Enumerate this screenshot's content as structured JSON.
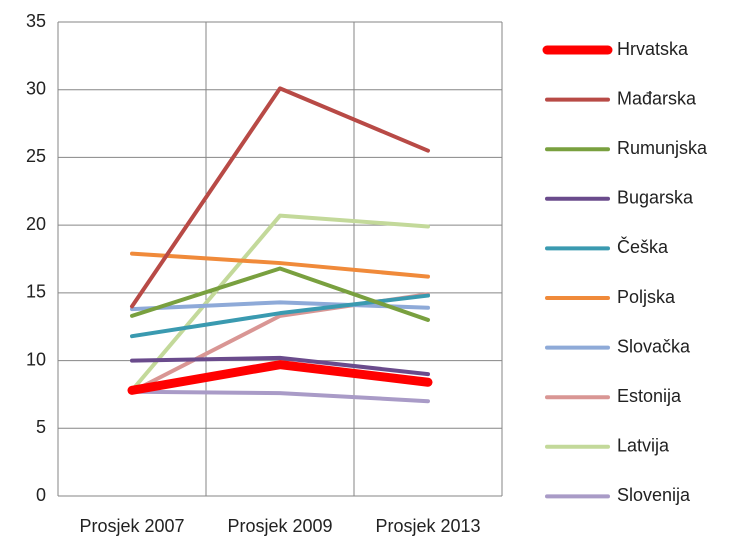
{
  "chart_data": {
    "type": "line",
    "categories": [
      "Prosjek 2007",
      "Prosjek 2009",
      "Prosjek 2013"
    ],
    "ylim": [
      0,
      35
    ],
    "yticks": [
      0,
      5,
      10,
      15,
      20,
      25,
      30,
      35
    ],
    "grid": true,
    "legend": "right",
    "series": [
      {
        "name": "Hrvatska",
        "color": "#ff0000",
        "line_width": 9,
        "values": [
          7.8,
          9.7,
          8.4
        ]
      },
      {
        "name": "Mađarska",
        "color": "#b84a46",
        "line_width": 4,
        "values": [
          14.0,
          30.1,
          25.5
        ]
      },
      {
        "name": "Rumunjska",
        "color": "#79a03f",
        "line_width": 4,
        "values": [
          13.3,
          16.8,
          13.0
        ]
      },
      {
        "name": "Bugarska",
        "color": "#6a4b8c",
        "line_width": 4,
        "values": [
          10.0,
          10.2,
          9.0
        ]
      },
      {
        "name": "Češka",
        "color": "#3a9ab0",
        "line_width": 4,
        "values": [
          11.8,
          13.5,
          14.8
        ]
      },
      {
        "name": "Poljska",
        "color": "#f08a3a",
        "line_width": 4,
        "values": [
          17.9,
          17.2,
          16.2
        ]
      },
      {
        "name": "Slovačka",
        "color": "#8eaad8",
        "line_width": 4,
        "values": [
          13.8,
          14.3,
          13.9
        ]
      },
      {
        "name": "Estonija",
        "color": "#d99694",
        "line_width": 4,
        "values": [
          7.7,
          13.3,
          14.9
        ]
      },
      {
        "name": "Latvija",
        "color": "#c3d99a",
        "line_width": 4,
        "values": [
          7.8,
          20.7,
          19.9
        ]
      },
      {
        "name": "Slovenija",
        "color": "#a99bc7",
        "line_width": 4,
        "values": [
          7.7,
          7.6,
          7.0
        ]
      }
    ]
  }
}
